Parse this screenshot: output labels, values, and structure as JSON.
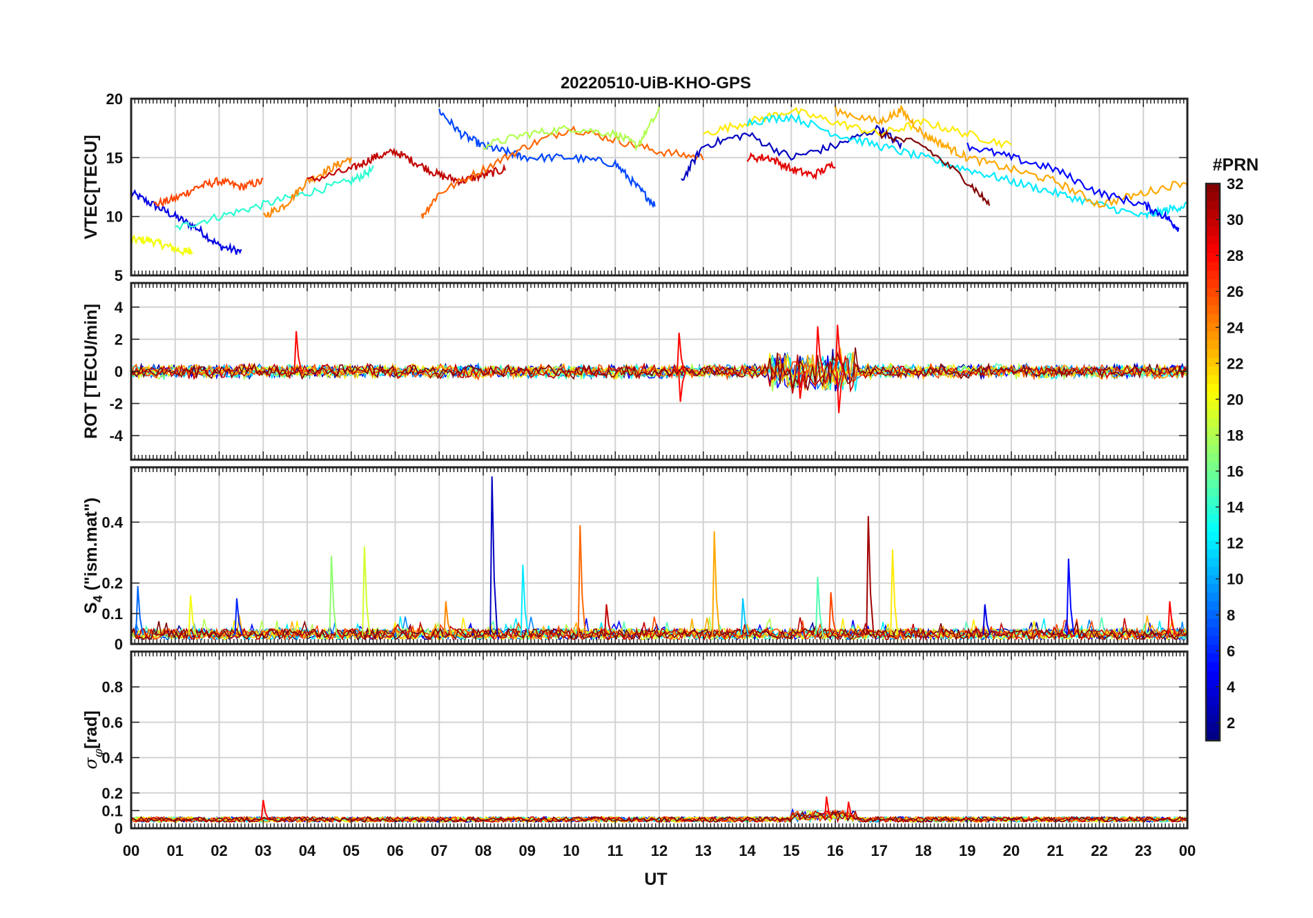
{
  "chart_data": {
    "type": "line",
    "title": "20220510-UiB-KHO-GPS",
    "xlabel": "UT",
    "x_tick_labels": [
      "00",
      "01",
      "02",
      "03",
      "04",
      "05",
      "06",
      "07",
      "08",
      "09",
      "10",
      "11",
      "12",
      "13",
      "14",
      "15",
      "16",
      "17",
      "18",
      "19",
      "20",
      "21",
      "22",
      "23",
      "00"
    ],
    "xlim_hours": [
      0,
      24
    ],
    "grid": true,
    "colorbar": {
      "label": "#PRN",
      "range": [
        1,
        32
      ],
      "ticks": [
        "2",
        "4",
        "6",
        "8",
        "10",
        "12",
        "14",
        "16",
        "18",
        "20",
        "22",
        "24",
        "26",
        "28",
        "30",
        "32"
      ],
      "colormap": "jet"
    },
    "panels": [
      {
        "id": "vtec",
        "ylabel": "VTEC[TECU]",
        "ylim": [
          5,
          20
        ],
        "y_ticks": [
          5,
          10,
          15,
          20
        ],
        "y_tick_labels": [
          "5",
          "10",
          "15",
          "20"
        ],
        "description_series": [
          {
            "name": "PRN 4",
            "x": [
              0,
              0.5,
              1,
              1.5,
              2,
              2.5
            ],
            "y": [
              12,
              11,
              10,
              9,
              7.5,
              7
            ]
          },
          {
            "name": "PRN 20",
            "x": [
              0,
              0.4,
              0.8,
              1.2,
              1.4
            ],
            "y": [
              8,
              8,
              7.5,
              7,
              7.2
            ]
          },
          {
            "name": "PRN 26",
            "x": [
              0.5,
              1,
              1.5,
              2,
              2.5,
              3
            ],
            "y": [
              11,
              11.5,
              12.5,
              13,
              12.5,
              13
            ]
          },
          {
            "name": "PRN 14",
            "x": [
              1,
              2,
              3,
              4,
              5,
              5.5
            ],
            "y": [
              9,
              10,
              11,
              12,
              13,
              14
            ]
          },
          {
            "name": "PRN 24",
            "x": [
              3,
              3.5,
              4,
              4.5,
              5
            ],
            "y": [
              10,
              11,
              13,
              14,
              15
            ]
          },
          {
            "name": "PRN 30",
            "x": [
              4,
              5,
              5.5,
              6,
              6.5,
              7,
              7.5,
              8,
              8.5
            ],
            "y": [
              13,
              14,
              15,
              15.5,
              14.5,
              13.5,
              13,
              13.5,
              14
            ]
          },
          {
            "name": "PRN 7",
            "x": [
              7,
              7.5,
              8,
              8.5,
              9,
              10,
              11,
              11.5,
              11.9
            ],
            "y": [
              19,
              17,
              16,
              15.5,
              15,
              15,
              14.5,
              12.5,
              11
            ]
          },
          {
            "name": "PRN 25",
            "x": [
              6.6,
              7,
              8,
              9,
              10,
              11,
              12,
              13
            ],
            "y": [
              10,
              12,
              14,
              16,
              17.5,
              16.5,
              15.5,
              15
            ]
          },
          {
            "name": "PRN 18",
            "x": [
              8,
              9,
              10,
              11,
              11.5,
              12
            ],
            "y": [
              16,
              17,
              17.5,
              17,
              16,
              19
            ]
          },
          {
            "name": "PRN 3",
            "x": [
              12.5,
              13,
              14,
              15,
              16,
              17,
              17.5
            ],
            "y": [
              13,
              16,
              17,
              15,
              16,
              17.5,
              16
            ]
          },
          {
            "name": "PRN 21",
            "x": [
              13,
              14,
              15,
              16,
              17,
              18,
              19,
              20
            ],
            "y": [
              17,
              18,
              19,
              18,
              17,
              18,
              17,
              16
            ]
          },
          {
            "name": "PRN 29",
            "x": [
              14,
              14.5,
              15,
              15.5,
              16
            ],
            "y": [
              15,
              15,
              14,
              13.5,
              14.5
            ]
          },
          {
            "name": "PRN 12",
            "x": [
              14,
              15,
              16,
              17,
              18,
              19,
              20,
              21,
              22,
              23,
              23.5,
              24
            ],
            "y": [
              18,
              18.5,
              17,
              16,
              15,
              14,
              13,
              12,
              11,
              10,
              10.5,
              11
            ]
          },
          {
            "name": "PRN 32",
            "x": [
              17,
              18,
              19,
              19.5
            ],
            "y": [
              17,
              16,
              13,
              11
            ]
          },
          {
            "name": "PRN 23",
            "x": [
              16,
              17,
              17.5,
              18,
              18.5,
              19,
              20,
              21,
              22,
              23,
              24
            ],
            "y": [
              19,
              18,
              19,
              17,
              16,
              15,
              14,
              13,
              11,
              12,
              13
            ]
          },
          {
            "name": "PRN 5",
            "x": [
              19,
              20,
              21,
              22,
              23,
              23.5,
              23.8
            ],
            "y": [
              16,
              15,
              14,
              12,
              11,
              10,
              9
            ]
          }
        ]
      },
      {
        "id": "rot",
        "ylabel": "ROT [TECU/min]",
        "ylim": [
          -5.5,
          5.5
        ],
        "y_ticks": [
          -4,
          -2,
          0,
          2,
          4
        ],
        "y_tick_labels": [
          "-4",
          "-2",
          "0",
          "2",
          "4"
        ],
        "spikes": [
          {
            "x": 3.75,
            "y": 2.5
          },
          {
            "x": 12.45,
            "y": 2.4
          },
          {
            "x": 12.48,
            "y": -1.9
          },
          {
            "x": 15.2,
            "y": -1.7
          },
          {
            "x": 15.6,
            "y": 2.8
          },
          {
            "x": 16.05,
            "y": 2.9
          },
          {
            "x": 16.08,
            "y": -2.6
          }
        ],
        "noise_profile": "baseline 0 with amplitude about 0.5 TECU, increased to about 1.5 TECU between 14.5 and 16.5 UT"
      },
      {
        "id": "s4",
        "ylabel": "S",
        "ylabel_subscript": "4",
        "ylabel_suffix": " (\"ism.mat\")",
        "ylim": [
          0,
          0.58
        ],
        "y_ticks": [
          0,
          0.1,
          0.2,
          0.4
        ],
        "y_tick_labels": [
          "0",
          "0.1",
          "0.2",
          "0.4"
        ],
        "spikes": [
          {
            "x": 0.15,
            "y": 0.19,
            "prn": 8
          },
          {
            "x": 1.35,
            "y": 0.16,
            "prn": 20
          },
          {
            "x": 2.4,
            "y": 0.15,
            "prn": 6
          },
          {
            "x": 4.55,
            "y": 0.29,
            "prn": 17
          },
          {
            "x": 5.3,
            "y": 0.32,
            "prn": 19
          },
          {
            "x": 7.15,
            "y": 0.14,
            "prn": 24
          },
          {
            "x": 8.2,
            "y": 0.55,
            "prn": 3
          },
          {
            "x": 8.9,
            "y": 0.26,
            "prn": 12
          },
          {
            "x": 10.2,
            "y": 0.39,
            "prn": 25
          },
          {
            "x": 10.8,
            "y": 0.13,
            "prn": 30
          },
          {
            "x": 13.25,
            "y": 0.37,
            "prn": 23
          },
          {
            "x": 13.9,
            "y": 0.15,
            "prn": 11
          },
          {
            "x": 15.6,
            "y": 0.22,
            "prn": 15
          },
          {
            "x": 15.9,
            "y": 0.17,
            "prn": 26
          },
          {
            "x": 16.75,
            "y": 0.42,
            "prn": 31
          },
          {
            "x": 17.3,
            "y": 0.31,
            "prn": 21
          },
          {
            "x": 19.4,
            "y": 0.13,
            "prn": 4
          },
          {
            "x": 21.3,
            "y": 0.28,
            "prn": 5
          },
          {
            "x": 23.6,
            "y": 0.14,
            "prn": 28
          }
        ],
        "noise_profile": "baseline around 0.02-0.05 with occasional bursts to 0.1"
      },
      {
        "id": "sigma_phi",
        "ylabel_symbol": "σ",
        "ylabel_subscript": "φ",
        "ylabel_suffix": "[rad]",
        "ylim": [
          0,
          1
        ],
        "y_ticks": [
          0,
          0.1,
          0.2,
          0.4,
          0.6,
          0.8
        ],
        "y_tick_labels": [
          "0",
          "0.1",
          "0.2",
          "0.4",
          "0.6",
          "0.8"
        ],
        "spikes": [
          {
            "x": 3.0,
            "y": 0.16
          },
          {
            "x": 15.8,
            "y": 0.18
          },
          {
            "x": 16.3,
            "y": 0.15
          }
        ],
        "noise_profile": "baseline around 0.04-0.07 rad"
      }
    ]
  }
}
